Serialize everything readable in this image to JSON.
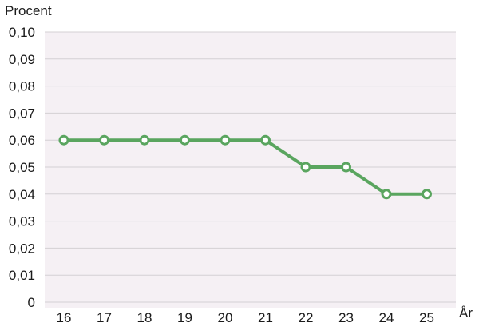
{
  "chart_data": {
    "type": "line",
    "ylabel": "Procent",
    "xlabel": "År",
    "categories": [
      "16",
      "17",
      "18",
      "19",
      "20",
      "21",
      "22",
      "23",
      "24",
      "25"
    ],
    "series": [
      {
        "values": [
          0.06,
          0.06,
          0.06,
          0.06,
          0.06,
          0.06,
          0.05,
          0.05,
          0.04,
          0.04
        ]
      }
    ],
    "ylim": [
      0,
      0.1
    ],
    "yticks": [
      "0",
      "0,01",
      "0,02",
      "0,03",
      "0,04",
      "0,05",
      "0,06",
      "0,07",
      "0,08",
      "0,09",
      "0,10"
    ],
    "grid": true,
    "colors": {
      "line": "#5aa55f",
      "plot_bg": "#f5f0f4",
      "grid": "#d4d0d3",
      "marker_fill": "#ffffff"
    }
  }
}
